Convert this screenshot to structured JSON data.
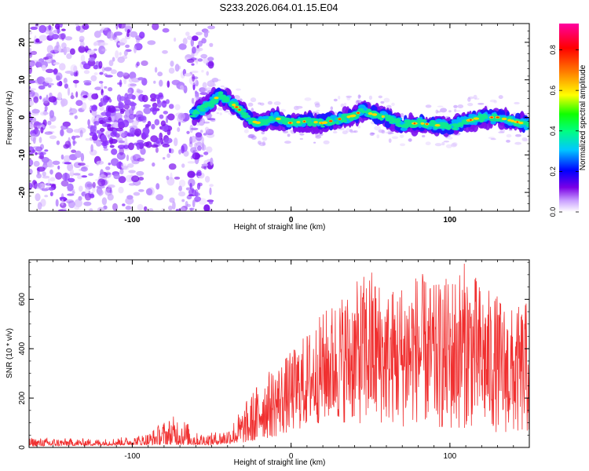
{
  "title": "S233.2026.064.01.15.E04",
  "chart_data": [
    {
      "type": "heatmap",
      "title": "S233.2026.064.01.15.E04",
      "xlabel": "Height of straight line (km)",
      "ylabel": "Frequency (Hz)",
      "xlim": [
        -165,
        150
      ],
      "ylim": [
        -25,
        25
      ],
      "xticks": [
        -100,
        0,
        100
      ],
      "yticks": [
        -20,
        -10,
        0,
        10,
        20
      ],
      "colorbar": {
        "label": "Normalized spectral amplitude",
        "range": [
          0,
          0.93
        ],
        "ticks": [
          0.0,
          0.2,
          0.4,
          0.6,
          0.8
        ]
      },
      "ridge": {
        "x": [
          -60,
          -50,
          -45,
          -40,
          -35,
          -30,
          -25,
          -20,
          -15,
          -10,
          -5,
          0,
          10,
          20,
          30,
          40,
          45,
          50,
          60,
          70,
          80,
          90,
          100,
          110,
          120,
          130,
          140,
          150
        ],
        "frequency": [
          1,
          4,
          6,
          4.5,
          3,
          1,
          -1,
          -1.5,
          -1,
          0,
          -1,
          -1.5,
          -1,
          -1.5,
          -0.5,
          0.5,
          2,
          1,
          0,
          -2,
          -1.5,
          -2,
          -2.5,
          -1,
          0,
          0,
          -1,
          -2
        ]
      }
    },
    {
      "type": "line",
      "xlabel": "Height of straight line (km)",
      "ylabel": "SNR (10 * v/v)",
      "xlim": [
        -165,
        150
      ],
      "ylim": [
        0,
        760
      ],
      "xticks": [
        -100,
        0,
        100
      ],
      "yticks": [
        0,
        200,
        400,
        600
      ],
      "color": "#f03030",
      "envelope": {
        "x": [
          -165,
          -120,
          -100,
          -90,
          -80,
          -70,
          -60,
          -50,
          -40,
          -30,
          -20,
          -10,
          0,
          10,
          20,
          30,
          40,
          50,
          60,
          70,
          80,
          90,
          100,
          110,
          120,
          130,
          140,
          150
        ],
        "min": [
          5,
          8,
          10,
          10,
          12,
          10,
          10,
          10,
          15,
          20,
          30,
          40,
          60,
          80,
          100,
          100,
          100,
          80,
          100,
          80,
          100,
          80,
          60,
          80,
          80,
          60,
          50,
          50
        ],
        "max": [
          40,
          35,
          45,
          60,
          110,
          140,
          60,
          60,
          80,
          170,
          280,
          330,
          390,
          470,
          550,
          620,
          660,
          740,
          640,
          680,
          720,
          660,
          700,
          760,
          660,
          620,
          560,
          600
        ]
      }
    }
  ]
}
